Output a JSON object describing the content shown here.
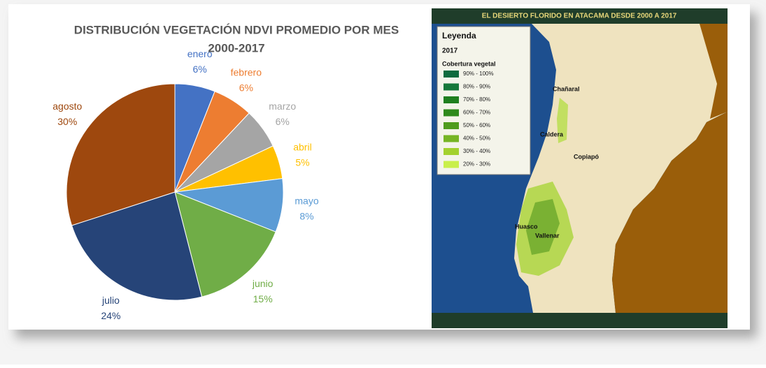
{
  "chart_data": {
    "type": "pie",
    "title": "DISTRIBUCIÓN VEGETACIÓN NDVI PROMEDIO POR MES",
    "subtitle": "2000-2017",
    "categories": [
      "enero",
      "febrero",
      "marzo",
      "abril",
      "mayo",
      "junio",
      "julio",
      "agosto"
    ],
    "values": [
      6,
      6,
      6,
      5,
      8,
      15,
      24,
      30
    ],
    "value_labels": [
      "6%",
      "6%",
      "6%",
      "5%",
      "8%",
      "15%",
      "24%",
      "30%"
    ],
    "colors": [
      "#4472c4",
      "#ed7d31",
      "#a5a5a5",
      "#ffc000",
      "#5b9bd5",
      "#70ad47",
      "#264478",
      "#9e480e"
    ]
  },
  "map": {
    "title": "EL DESIERTO FLORIDO EN ATACAMA DESDE 2000 A 2017",
    "legend_title": "Leyenda",
    "legend_year": "2017",
    "legend_subtitle": "Cobertura vegetal",
    "legend_items": [
      {
        "label": "90% - 100%",
        "color": "#0e6b3e"
      },
      {
        "label": "80% - 90%",
        "color": "#16783a"
      },
      {
        "label": "70% - 80%",
        "color": "#1f7f1f"
      },
      {
        "label": "60% - 70%",
        "color": "#2f8a1c"
      },
      {
        "label": "50% - 60%",
        "color": "#4f9c1e"
      },
      {
        "label": "40% - 50%",
        "color": "#76b524"
      },
      {
        "label": "30% - 40%",
        "color": "#a3d12e"
      },
      {
        "label": "20% - 30%",
        "color": "#c9ef4a"
      }
    ],
    "places": [
      "Chañaral",
      "Caldera",
      "Copiapó",
      "Huasco",
      "Vallenar"
    ]
  }
}
